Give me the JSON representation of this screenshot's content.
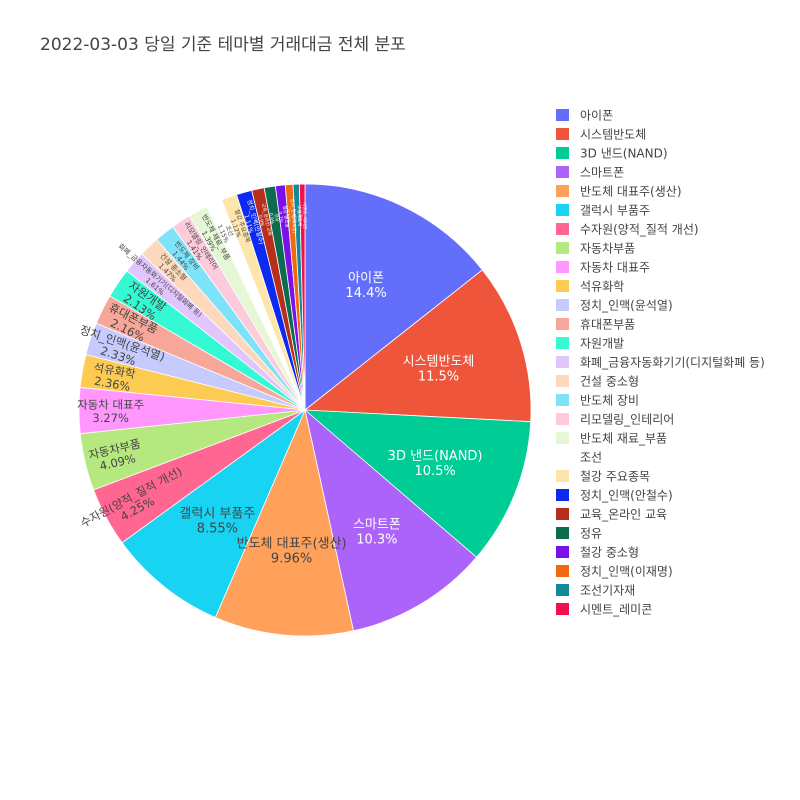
{
  "chart_data": {
    "type": "pie",
    "title": "2022-03-03 당일 기준 테마별 거래대금 전체 분포",
    "legend_position": "right",
    "slices": [
      {
        "name": "아이폰",
        "percent": 14.4,
        "label": "14.4%",
        "color": "#636EFA"
      },
      {
        "name": "시스템반도체",
        "percent": 11.5,
        "label": "11.5%",
        "color": "#EF553B"
      },
      {
        "name": "3D 낸드(NAND)",
        "percent": 10.5,
        "label": "10.5%",
        "color": "#00CC96"
      },
      {
        "name": "스마트폰",
        "percent": 10.3,
        "label": "10.3%",
        "color": "#AB63FA"
      },
      {
        "name": "반도체 대표주(생산)",
        "percent": 9.96,
        "label": "9.96%",
        "color": "#FFA15A"
      },
      {
        "name": "갤럭시 부품주",
        "percent": 8.55,
        "label": "8.55%",
        "color": "#19D3F3"
      },
      {
        "name": "수자원(양적_질적 개선)",
        "percent": 4.25,
        "label": "4.25%",
        "color": "#FF6692"
      },
      {
        "name": "자동차부품",
        "percent": 4.09,
        "label": "4.09%",
        "color": "#B6E880"
      },
      {
        "name": "자동차 대표주",
        "percent": 3.27,
        "label": "3.27%",
        "color": "#FF97FF"
      },
      {
        "name": "석유화학",
        "percent": 2.36,
        "label": "2.36%",
        "color": "#FECB52"
      },
      {
        "name": "정치_인맥(윤석열)",
        "percent": 2.33,
        "label": "2.33%",
        "color": "#C6CAFD"
      },
      {
        "name": "휴대폰부품",
        "percent": 2.16,
        "label": "2.16%",
        "color": "#F7A799"
      },
      {
        "name": "자원개발",
        "percent": 2.13,
        "label": "2.13%",
        "color": "#35F9D2"
      },
      {
        "name": "화폐_금융자동화기기(디지털화폐 등)",
        "percent": 1.61,
        "label": "1.61%",
        "color": "#E1C6FD"
      },
      {
        "name": "건설 중소형",
        "percent": 1.47,
        "label": "1.47%",
        "color": "#FDD8BC"
      },
      {
        "name": "반도체 장비",
        "percent": 1.44,
        "label": "1.44%",
        "color": "#7EE3F9"
      },
      {
        "name": "리모델링_인테리어",
        "percent": 1.41,
        "label": "1.41%",
        "color": "#FDCBDC"
      },
      {
        "name": "반도체 재료_부품",
        "percent": 1.39,
        "label": "1.39%",
        "color": "#E5F7D5"
      },
      {
        "name": "조선",
        "percent": 1.15,
        "label": "1.15%",
        "color": "#FFFFFF"
      },
      {
        "name": "철강 주요종목",
        "percent": 1.12,
        "label": "1.12%",
        "color": "#FEE5AC"
      },
      {
        "name": "정치_인맥(안철수)",
        "percent": 1.11,
        "label": "1.11%",
        "color": "#0D2AF0"
      },
      {
        "name": "교육_온라인 교육",
        "percent": 0.9,
        "label": "0.9%",
        "color": "#B82E1C"
      },
      {
        "name": "정유",
        "percent": 0.8,
        "label": "0.8%",
        "color": "#0D6B4F"
      },
      {
        "name": "철강 중소형",
        "percent": 0.7,
        "label": "0.7%",
        "color": "#7B10E8"
      },
      {
        "name": "정치_인맥(이재명)",
        "percent": 0.55,
        "label": "0.55%",
        "color": "#F0690D"
      },
      {
        "name": "조선기자재",
        "percent": 0.45,
        "label": "0.45%",
        "color": "#138A9A"
      },
      {
        "name": "시멘트_레미콘",
        "percent": 0.4,
        "label": "0.4%",
        "color": "#F0114E"
      }
    ]
  }
}
